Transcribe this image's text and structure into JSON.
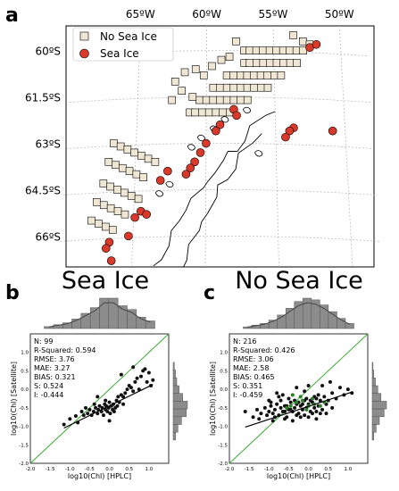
{
  "chart_data": [
    {
      "type": "scatter",
      "panel": "a",
      "lon_labels": [
        "65ºW",
        "60ºW",
        "55ºW",
        "50ºW"
      ],
      "lat_labels": [
        "60ºS",
        "61.5ºS",
        "63ºS",
        "64.5ºS",
        "66ºS"
      ],
      "legend": {
        "placement": "top-left",
        "entries": [
          "No Sea Ice",
          "Sea Ice"
        ]
      },
      "series": [
        {
          "name": "No Sea Ice",
          "color": "#efe6d3",
          "marker": "square",
          "points": [
            [
              -57.2,
              -60.0
            ],
            [
              -56.8,
              -60.0
            ],
            [
              -56.3,
              -60.0
            ],
            [
              -55.8,
              -60.0
            ],
            [
              -55.3,
              -60.0
            ],
            [
              -54.8,
              -60.0
            ],
            [
              -54.3,
              -60.0
            ],
            [
              -53.8,
              -60.0
            ],
            [
              -53.3,
              -60.0
            ],
            [
              -52.8,
              -60.0
            ],
            [
              -57.2,
              -60.4
            ],
            [
              -56.8,
              -60.4
            ],
            [
              -56.3,
              -60.4
            ],
            [
              -55.8,
              -60.4
            ],
            [
              -55.3,
              -60.4
            ],
            [
              -54.8,
              -60.4
            ],
            [
              -54.3,
              -60.4
            ],
            [
              -53.8,
              -60.4
            ],
            [
              -53.3,
              -60.4
            ],
            [
              -58.5,
              -60.8
            ],
            [
              -58.0,
              -60.8
            ],
            [
              -57.5,
              -60.8
            ],
            [
              -57.0,
              -60.8
            ],
            [
              -56.5,
              -60.8
            ],
            [
              -56.0,
              -60.8
            ],
            [
              -55.5,
              -60.8
            ],
            [
              -55.0,
              -60.8
            ],
            [
              -54.5,
              -60.8
            ],
            [
              -59.5,
              -61.2
            ],
            [
              -59.0,
              -61.2
            ],
            [
              -58.5,
              -61.2
            ],
            [
              -58.0,
              -61.2
            ],
            [
              -57.5,
              -61.2
            ],
            [
              -57.0,
              -61.2
            ],
            [
              -56.5,
              -61.2
            ],
            [
              -56.0,
              -61.2
            ],
            [
              -55.5,
              -61.2
            ],
            [
              -60.5,
              -61.6
            ],
            [
              -60.0,
              -61.6
            ],
            [
              -59.5,
              -61.6
            ],
            [
              -59.0,
              -61.6
            ],
            [
              -58.5,
              -61.6
            ],
            [
              -58.0,
              -61.6
            ],
            [
              -57.5,
              -61.6
            ],
            [
              -57.0,
              -61.6
            ],
            [
              -61.2,
              -62.0
            ],
            [
              -60.8,
              -62.0
            ],
            [
              -60.3,
              -62.0
            ],
            [
              -59.8,
              -62.0
            ],
            [
              -59.3,
              -62.0
            ],
            [
              -58.8,
              -62.0
            ],
            [
              -58.3,
              -62.0
            ],
            [
              -62.3,
              -61.0
            ],
            [
              -61.8,
              -61.3
            ],
            [
              -61.0,
              -61.5
            ],
            [
              -60.2,
              -60.8
            ],
            [
              -59.6,
              -60.5
            ],
            [
              -58.9,
              -60.3
            ],
            [
              -58.3,
              -60.2
            ],
            [
              -66.6,
              -63.0
            ],
            [
              -66.1,
              -63.1
            ],
            [
              -65.6,
              -63.2
            ],
            [
              -65.1,
              -63.3
            ],
            [
              -64.6,
              -63.4
            ],
            [
              -64.1,
              -63.5
            ],
            [
              -63.6,
              -63.6
            ],
            [
              -66.9,
              -63.6
            ],
            [
              -66.4,
              -63.7
            ],
            [
              -65.9,
              -63.8
            ],
            [
              -65.4,
              -63.9
            ],
            [
              -64.9,
              -64.0
            ],
            [
              -64.4,
              -64.1
            ],
            [
              -67.2,
              -64.3
            ],
            [
              -66.7,
              -64.4
            ],
            [
              -66.2,
              -64.5
            ],
            [
              -65.7,
              -64.6
            ],
            [
              -65.2,
              -64.7
            ],
            [
              -64.7,
              -64.8
            ],
            [
              -67.6,
              -64.9
            ],
            [
              -67.1,
              -65.0
            ],
            [
              -66.6,
              -65.1
            ],
            [
              -66.1,
              -65.2
            ],
            [
              -65.6,
              -65.3
            ],
            [
              -67.9,
              -65.5
            ],
            [
              -67.4,
              -65.6
            ],
            [
              -66.9,
              -65.7
            ],
            [
              -66.4,
              -65.8
            ],
            [
              -52.8,
              -59.7
            ],
            [
              -52.3,
              -59.8
            ],
            [
              -53.5,
              -59.5
            ],
            [
              -57.8,
              -59.7
            ],
            [
              -60.8,
              -60.6
            ],
            [
              -61.6,
              -60.7
            ],
            [
              -62.5,
              -61.6
            ]
          ]
        },
        {
          "name": "Sea Ice",
          "color": "#d9392a",
          "marker": "circle",
          "points": [
            [
              -52.3,
              -59.9
            ],
            [
              -51.8,
              -59.8
            ],
            [
              -50.9,
              -62.6
            ],
            [
              -53.7,
              -62.5
            ],
            [
              -54.0,
              -62.6
            ],
            [
              -54.3,
              -62.8
            ],
            [
              -58.0,
              -61.9
            ],
            [
              -57.8,
              -62.1
            ],
            [
              -59.0,
              -62.4
            ],
            [
              -59.3,
              -62.6
            ],
            [
              -60.0,
              -63.0
            ],
            [
              -60.4,
              -63.3
            ],
            [
              -60.8,
              -63.6
            ],
            [
              -61.1,
              -63.8
            ],
            [
              -61.4,
              -64.0
            ],
            [
              -62.7,
              -63.9
            ],
            [
              -63.2,
              -64.2
            ],
            [
              -64.5,
              -65.2
            ],
            [
              -64.9,
              -65.4
            ],
            [
              -64.1,
              -65.3
            ],
            [
              -65.3,
              -66.0
            ],
            [
              -66.6,
              -66.2
            ],
            [
              -66.8,
              -66.4
            ],
            [
              -66.4,
              -66.8
            ]
          ]
        }
      ]
    },
    {
      "type": "scatter",
      "panel": "b",
      "title": "Sea Ice",
      "xlabel": "log10(Chl) [HPLC]",
      "ylabel": "log10(Chl) [Satellite]",
      "xlim": [
        -2.0,
        1.5
      ],
      "ylim": [
        -2.0,
        1.5
      ],
      "ticks": [
        "-2.0",
        "-1.5",
        "-1.0",
        "-0.5",
        "0.0",
        "0.5",
        "1.0"
      ],
      "stats": [
        "N: 99",
        "R-Squared: 0.594",
        "RMSE: 3.76",
        "MAE: 3.27",
        "BIAS: 0.321",
        "S: 0.524",
        "I: -0.444"
      ],
      "slope": 0.524,
      "intercept": -0.444,
      "top_hist": [
        1,
        2,
        3,
        5,
        8,
        11,
        16,
        16,
        12,
        10,
        6,
        4
      ],
      "right_hist": [
        1,
        2,
        3,
        5,
        8,
        12,
        11,
        7,
        4,
        2
      ],
      "points": [
        [
          -1.15,
          -0.95
        ],
        [
          -1.0,
          -0.8
        ],
        [
          -0.85,
          -0.72
        ],
        [
          -0.8,
          -0.9
        ],
        [
          -0.7,
          -0.6
        ],
        [
          -0.65,
          -0.7
        ],
        [
          -0.6,
          -0.5
        ],
        [
          -0.55,
          -0.65
        ],
        [
          -0.5,
          -0.55
        ],
        [
          -0.45,
          -0.7
        ],
        [
          -0.4,
          -0.6
        ],
        [
          -0.38,
          -0.4
        ],
        [
          -0.35,
          -0.5
        ],
        [
          -0.3,
          -0.65
        ],
        [
          -0.28,
          -0.55
        ],
        [
          -0.25,
          -0.45
        ],
        [
          -0.2,
          -0.6
        ],
        [
          -0.18,
          -0.5
        ],
        [
          -0.15,
          -0.7
        ],
        [
          -0.12,
          -0.4
        ],
        [
          -0.1,
          -0.55
        ],
        [
          -0.08,
          -0.45
        ],
        [
          -0.05,
          -0.6
        ],
        [
          -0.02,
          -0.5
        ],
        [
          0.0,
          -0.35
        ],
        [
          0.02,
          -0.65
        ],
        [
          0.05,
          -0.45
        ],
        [
          0.08,
          -0.55
        ],
        [
          0.1,
          -0.4
        ],
        [
          0.12,
          -0.6
        ],
        [
          0.15,
          -0.5
        ],
        [
          0.18,
          -0.3
        ],
        [
          0.2,
          -0.45
        ],
        [
          0.22,
          -0.2
        ],
        [
          0.25,
          -0.35
        ],
        [
          0.3,
          -0.15
        ],
        [
          0.35,
          -0.4
        ],
        [
          0.4,
          -0.1
        ],
        [
          0.45,
          0.0
        ],
        [
          0.5,
          0.1
        ],
        [
          0.55,
          0.05
        ],
        [
          0.6,
          -0.05
        ],
        [
          0.65,
          0.2
        ],
        [
          0.7,
          0.3
        ],
        [
          0.75,
          0.0
        ],
        [
          0.8,
          0.35
        ],
        [
          0.85,
          0.5
        ],
        [
          0.9,
          0.55
        ],
        [
          0.95,
          0.2
        ],
        [
          1.0,
          0.45
        ],
        [
          1.05,
          0.1
        ],
        [
          1.1,
          0.25
        ],
        [
          0.6,
          0.6
        ],
        [
          0.3,
          0.4
        ],
        [
          -0.3,
          -0.2
        ],
        [
          0.0,
          -0.85
        ],
        [
          -0.1,
          -0.3
        ],
        [
          0.35,
          -0.2
        ]
      ]
    },
    {
      "type": "scatter",
      "panel": "c",
      "title": "No Sea Ice",
      "xlabel": "log10(Chl) [HPLC]",
      "ylabel": "log10(Chl) [Satellite]",
      "xlim": [
        -2.0,
        1.5
      ],
      "ylim": [
        -2.0,
        1.5
      ],
      "ticks": [
        "-2.0",
        "-1.5",
        "-1.0",
        "-0.5",
        "0.0",
        "0.5",
        "1.0"
      ],
      "stats": [
        "N: 216",
        "R-Squared: 0.426",
        "RMSE: 3.06",
        "MAE: 2.58",
        "BIAS: 0.465",
        "S: 0.351",
        "I: -0.459"
      ],
      "slope": 0.351,
      "intercept": -0.459,
      "top_hist": [
        1,
        2,
        3,
        5,
        8,
        12,
        16,
        18,
        17,
        14,
        10,
        6,
        3
      ],
      "right_hist": [
        1,
        2,
        4,
        7,
        11,
        18,
        15,
        9,
        5,
        2
      ],
      "points": [
        [
          -1.6,
          -0.6
        ],
        [
          -1.4,
          -0.75
        ],
        [
          -1.3,
          -0.55
        ],
        [
          -1.2,
          -0.65
        ],
        [
          -1.1,
          -0.5
        ],
        [
          -1.05,
          -0.7
        ],
        [
          -1.0,
          -0.6
        ],
        [
          -0.95,
          -0.45
        ],
        [
          -0.9,
          -0.65
        ],
        [
          -0.85,
          -0.55
        ],
        [
          -0.8,
          -0.4
        ],
        [
          -0.75,
          -0.7
        ],
        [
          -0.7,
          -0.5
        ],
        [
          -0.65,
          -0.6
        ],
        [
          -0.6,
          -0.45
        ],
        [
          -0.55,
          -0.75
        ],
        [
          -0.5,
          -0.55
        ],
        [
          -0.45,
          -0.35
        ],
        [
          -0.4,
          -0.6
        ],
        [
          -0.35,
          -0.5
        ],
        [
          -0.3,
          -0.4
        ],
        [
          -0.25,
          -0.65
        ],
        [
          -0.2,
          -0.45
        ],
        [
          -0.15,
          -0.55
        ],
        [
          -0.1,
          -0.3
        ],
        [
          -0.05,
          -0.5
        ],
        [
          0.0,
          -0.4
        ],
        [
          0.05,
          -0.6
        ],
        [
          0.1,
          -0.35
        ],
        [
          0.15,
          -0.5
        ],
        [
          0.2,
          -0.25
        ],
        [
          0.25,
          -0.45
        ],
        [
          0.3,
          -0.3
        ],
        [
          0.35,
          -0.55
        ],
        [
          0.4,
          -0.2
        ],
        [
          0.45,
          -0.4
        ],
        [
          0.5,
          -0.3
        ],
        [
          0.6,
          -0.1
        ],
        [
          0.7,
          -0.25
        ],
        [
          0.8,
          0.05
        ],
        [
          0.9,
          -0.15
        ],
        [
          1.0,
          0.0
        ],
        [
          1.1,
          -0.1
        ],
        [
          -0.95,
          -0.35
        ],
        [
          -0.85,
          -0.75
        ],
        [
          -0.7,
          -0.3
        ],
        [
          -0.6,
          -0.8
        ],
        [
          -0.5,
          -0.25
        ],
        [
          -0.4,
          -0.85
        ],
        [
          -0.3,
          -0.7
        ],
        [
          -0.2,
          -0.75
        ],
        [
          -0.1,
          -0.7
        ],
        [
          0.0,
          -0.75
        ],
        [
          0.1,
          -0.65
        ],
        [
          0.2,
          -0.6
        ],
        [
          0.3,
          -0.65
        ],
        [
          -0.55,
          -0.45
        ],
        [
          -0.45,
          -0.55
        ],
        [
          -0.35,
          -0.3
        ],
        [
          -0.25,
          -0.35
        ],
        [
          -0.15,
          -0.4
        ],
        [
          -0.05,
          -0.25
        ],
        [
          0.05,
          -0.3
        ],
        [
          0.15,
          -0.2
        ],
        [
          0.25,
          -0.15
        ],
        [
          -0.75,
          -0.2
        ],
        [
          -0.65,
          -0.15
        ],
        [
          0.35,
          0.1
        ],
        [
          0.55,
          0.2
        ],
        [
          -1.25,
          -0.8
        ],
        [
          -0.9,
          -0.85
        ],
        [
          -0.3,
          0.05
        ],
        [
          0.0,
          0.1
        ],
        [
          -0.1,
          -0.05
        ],
        [
          0.45,
          -0.65
        ],
        [
          0.6,
          -0.5
        ],
        [
          -0.8,
          -0.1
        ],
        [
          -1.0,
          -0.3
        ],
        [
          0.2,
          -0.8
        ],
        [
          -0.6,
          -0.6
        ]
      ],
      "highlighted_points": [
        [
          -0.55,
          -0.5
        ],
        [
          -0.45,
          -0.45
        ],
        [
          -0.3,
          -0.35
        ],
        [
          -0.15,
          -0.3
        ],
        [
          0.0,
          -0.45
        ],
        [
          0.15,
          -0.4
        ],
        [
          0.3,
          -0.45
        ],
        [
          -0.2,
          -0.2
        ],
        [
          0.1,
          -0.25
        ],
        [
          -0.05,
          -0.55
        ],
        [
          0.4,
          -0.35
        ],
        [
          -0.4,
          -0.15
        ]
      ]
    }
  ]
}
